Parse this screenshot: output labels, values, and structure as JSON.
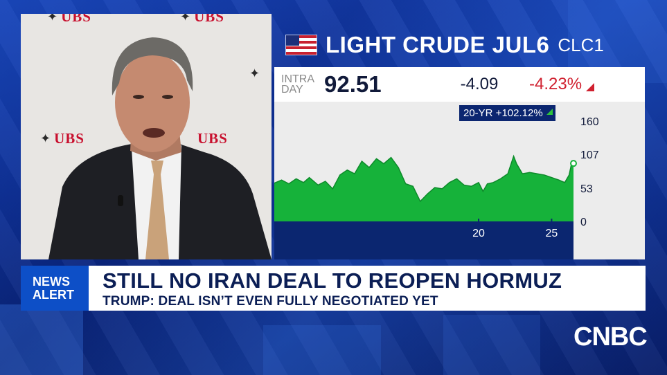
{
  "video": {
    "ubs_logo_text": "UBS"
  },
  "ticker": {
    "title": "LIGHT CRUDE JUL6",
    "symbol": "CLC1",
    "intraday_label_line1": "INTRA",
    "intraday_label_line2": "DAY",
    "price": "92.51",
    "change": "-4.09",
    "change_pct": "-4.23%",
    "change_color": "#d0202f",
    "long_term_badge": "20-YR +102.12%",
    "accent_green": "#2ec23c"
  },
  "chart_data": {
    "type": "area",
    "y_ticks": [
      "160",
      "107",
      "53",
      "0"
    ],
    "x_ticks": [
      "20",
      "25"
    ],
    "ylim": [
      0,
      160
    ],
    "x": [
      2006.0,
      2006.5,
      2007.0,
      2007.5,
      2008.0,
      2008.4,
      2008.6,
      2009.0,
      2009.5,
      2010.0,
      2010.5,
      2011.0,
      2011.5,
      2012.0,
      2012.5,
      2013.0,
      2013.5,
      2014.0,
      2014.5,
      2015.0,
      2015.5,
      2016.0,
      2016.5,
      2017.0,
      2017.5,
      2018.0,
      2018.5,
      2019.0,
      2019.5,
      2020.0,
      2020.3,
      2020.6,
      2021.0,
      2021.5,
      2022.0,
      2022.4,
      2022.6,
      2023.0,
      2023.5,
      2024.0,
      2024.5,
      2025.0,
      2025.5,
      2025.9,
      2026.2,
      2026.4,
      2026.5
    ],
    "y": [
      61,
      66,
      60,
      68,
      62,
      70,
      66,
      58,
      64,
      52,
      74,
      82,
      76,
      96,
      86,
      100,
      92,
      102,
      86,
      60,
      56,
      32,
      44,
      54,
      52,
      62,
      68,
      58,
      56,
      62,
      48,
      60,
      62,
      68,
      76,
      104,
      92,
      76,
      78,
      76,
      74,
      70,
      66,
      62,
      74,
      96,
      92.51
    ],
    "ylabel": "",
    "xlabel": ""
  },
  "alert": {
    "tag_line1": "NEWS",
    "tag_line2": "ALERT",
    "headline": "STILL NO IRAN DEAL TO REOPEN HORMUZ",
    "subhead": "TRUMP: DEAL ISN’T EVEN FULLY NEGOTIATED YET"
  },
  "network": {
    "logo": "CNBC"
  }
}
